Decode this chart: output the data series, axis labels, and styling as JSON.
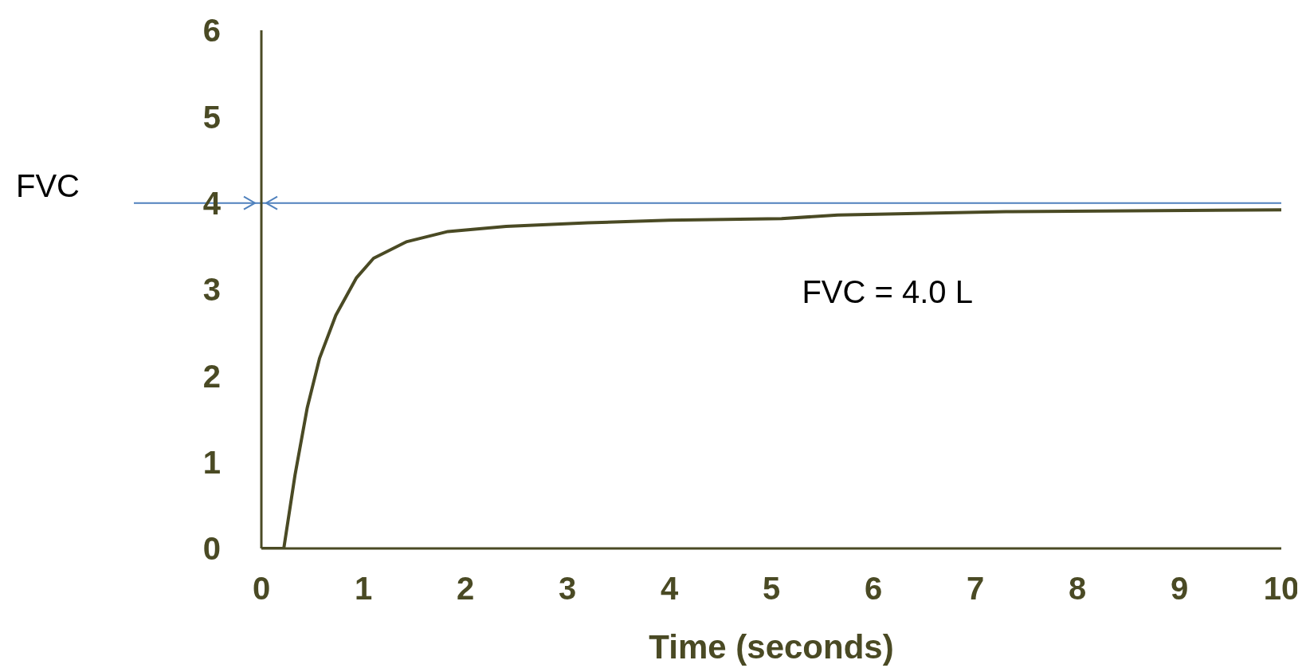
{
  "chart_data": {
    "type": "line",
    "xlabel": "Time (seconds)",
    "x": [
      0,
      0.22,
      0.33,
      0.45,
      0.57,
      0.73,
      0.93,
      1.1,
      1.42,
      1.83,
      2.4,
      3.2,
      4.0,
      5.1,
      5.65,
      7.3,
      10
    ],
    "series": [
      {
        "color": "#4a4a24",
        "values": [
          0,
          0,
          0.85,
          1.63,
          2.2,
          2.7,
          3.13,
          3.36,
          3.55,
          3.67,
          3.73,
          3.77,
          3.8,
          3.82,
          3.86,
          3.9,
          3.92
        ]
      }
    ],
    "xlim": [
      0,
      10
    ],
    "xticks": [
      0,
      1,
      2,
      3,
      4,
      5,
      6,
      7,
      8,
      9,
      10
    ],
    "ylim": [
      0,
      6
    ],
    "yticks": [
      0,
      1,
      2,
      3,
      4,
      5,
      6
    ],
    "ref_lines": [
      {
        "axis": "y",
        "value": 4,
        "label": "FVC",
        "color": "#4f81bd"
      }
    ],
    "annotations": [
      "FVC = 4.0 L"
    ],
    "grid": false,
    "legend": false,
    "marker": "none",
    "line_style": "solid"
  }
}
